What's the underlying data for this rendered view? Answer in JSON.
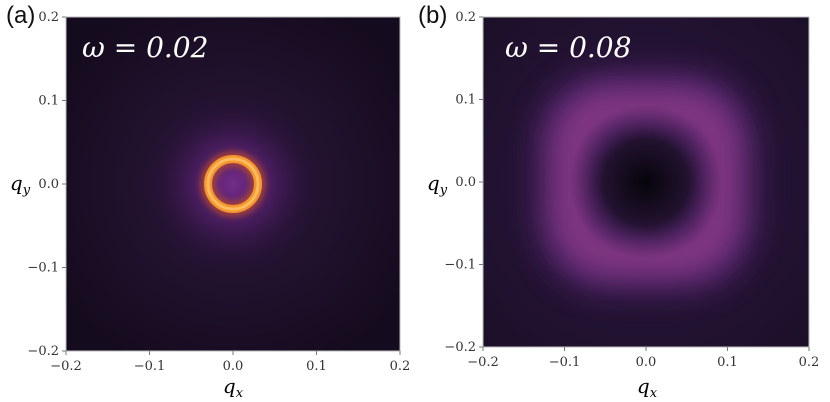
{
  "chart_data": [
    {
      "type": "heatmap",
      "panel_label": "(a)",
      "annotation": "ω = 0.02",
      "xlabel": "q_x",
      "ylabel": "q_y",
      "xlim": [
        -0.2,
        0.2
      ],
      "ylim": [
        -0.2,
        0.2
      ],
      "xticks": [
        "−0.2",
        "−0.1",
        "0.0",
        "0.1",
        "0.2"
      ],
      "yticks": [
        "−0.2",
        "−0.1",
        "0.0",
        "0.1",
        "0.2"
      ],
      "description_pattern": "ring",
      "ring_radius": 0.03,
      "colors": {
        "background": "#1a0f26",
        "glow": "#6a2a88",
        "ring": "#f59a32",
        "peak": "#ffc46a"
      }
    },
    {
      "type": "heatmap",
      "panel_label": "(b)",
      "annotation": "ω = 0.08",
      "xlabel": "q_x",
      "ylabel": "q_y",
      "xlim": [
        -0.2,
        0.2
      ],
      "ylim": [
        -0.2,
        0.2
      ],
      "xticks": [
        "−0.2",
        "−0.1",
        "0.0",
        "0.1",
        "0.2"
      ],
      "yticks": [
        "−0.2",
        "−0.1",
        "0.0",
        "0.1",
        "0.2"
      ],
      "description_pattern": "square-ring",
      "ring_radius": 0.09,
      "colors": {
        "background": "#24133a",
        "glow": "#7a3a9a",
        "ring": "#9a3f8a",
        "center": "#0c0810"
      }
    }
  ]
}
